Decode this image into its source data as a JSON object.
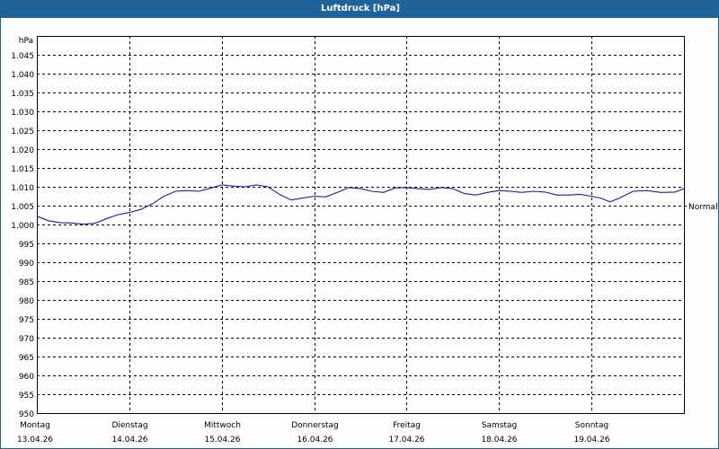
{
  "window": {
    "title": "Luftdruck [hPa]"
  },
  "chart_data": {
    "type": "line",
    "title": "Luftdruck [hPa]",
    "ylabel": "hPa",
    "xlabel": "",
    "ylim": [
      950,
      1045
    ],
    "yticks": [
      "1.045",
      "1.040",
      "1.035",
      "1.030",
      "1.025",
      "1.020",
      "1.015",
      "1.010",
      "1.005",
      "1.000",
      "995",
      "990",
      "985",
      "980",
      "975",
      "970",
      "965",
      "960",
      "955",
      "950"
    ],
    "yticks_values": [
      1045,
      1040,
      1035,
      1030,
      1025,
      1020,
      1015,
      1010,
      1005,
      1000,
      995,
      990,
      985,
      980,
      975,
      970,
      965,
      960,
      955,
      950
    ],
    "categories": [
      {
        "day": "Montag",
        "date": "13.04.26"
      },
      {
        "day": "Dienstag",
        "date": "14.04.26"
      },
      {
        "day": "Mittwoch",
        "date": "15.04.26"
      },
      {
        "day": "Donnerstag",
        "date": "16.04.26"
      },
      {
        "day": "Freitag",
        "date": "17.04.26"
      },
      {
        "day": "Samstag",
        "date": "18.04.26"
      },
      {
        "day": "Sonntag",
        "date": "19.04.26"
      }
    ],
    "reference_line": {
      "label": "Normal",
      "value": 1005
    },
    "grid": true,
    "series": [
      {
        "name": "Luftdruck",
        "color": "#1a1aa6",
        "x_days": [
          0,
          0.125,
          0.25,
          0.375,
          0.5,
          0.625,
          0.75,
          0.875,
          1,
          1.125,
          1.25,
          1.375,
          1.5,
          1.625,
          1.75,
          1.875,
          2,
          2.125,
          2.25,
          2.375,
          2.5,
          2.625,
          2.75,
          2.875,
          3,
          3.125,
          3.25,
          3.375,
          3.5,
          3.625,
          3.75,
          3.875,
          4,
          4.125,
          4.25,
          4.375,
          4.5,
          4.625,
          4.75,
          4.875,
          5,
          5.125,
          5.25,
          5.375,
          5.5,
          5.625,
          5.75,
          5.875,
          6,
          6.1,
          6.2,
          6.3,
          6.45,
          6.6,
          6.75,
          6.9,
          7
        ],
        "values": [
          1002.2,
          1001,
          1000.5,
          1000.4,
          1000.1,
          1000.3,
          1001.5,
          1002.6,
          1003.2,
          1004,
          1005.5,
          1007.5,
          1008.8,
          1009,
          1008.8,
          1009.6,
          1010.5,
          1010.2,
          1010,
          1010.5,
          1010,
          1008,
          1006.5,
          1007,
          1007.5,
          1007.3,
          1008.5,
          1009.8,
          1009.5,
          1008.8,
          1008.5,
          1009.7,
          1009.8,
          1009.5,
          1009.3,
          1009.8,
          1009.5,
          1008.2,
          1007.8,
          1008.5,
          1009,
          1008.8,
          1008.5,
          1008.8,
          1008.6,
          1007.8,
          1007.8,
          1008,
          1007.5,
          1007,
          1006,
          1007,
          1008.8,
          1009,
          1008.5,
          1008.6,
          1009.5
        ]
      }
    ]
  }
}
